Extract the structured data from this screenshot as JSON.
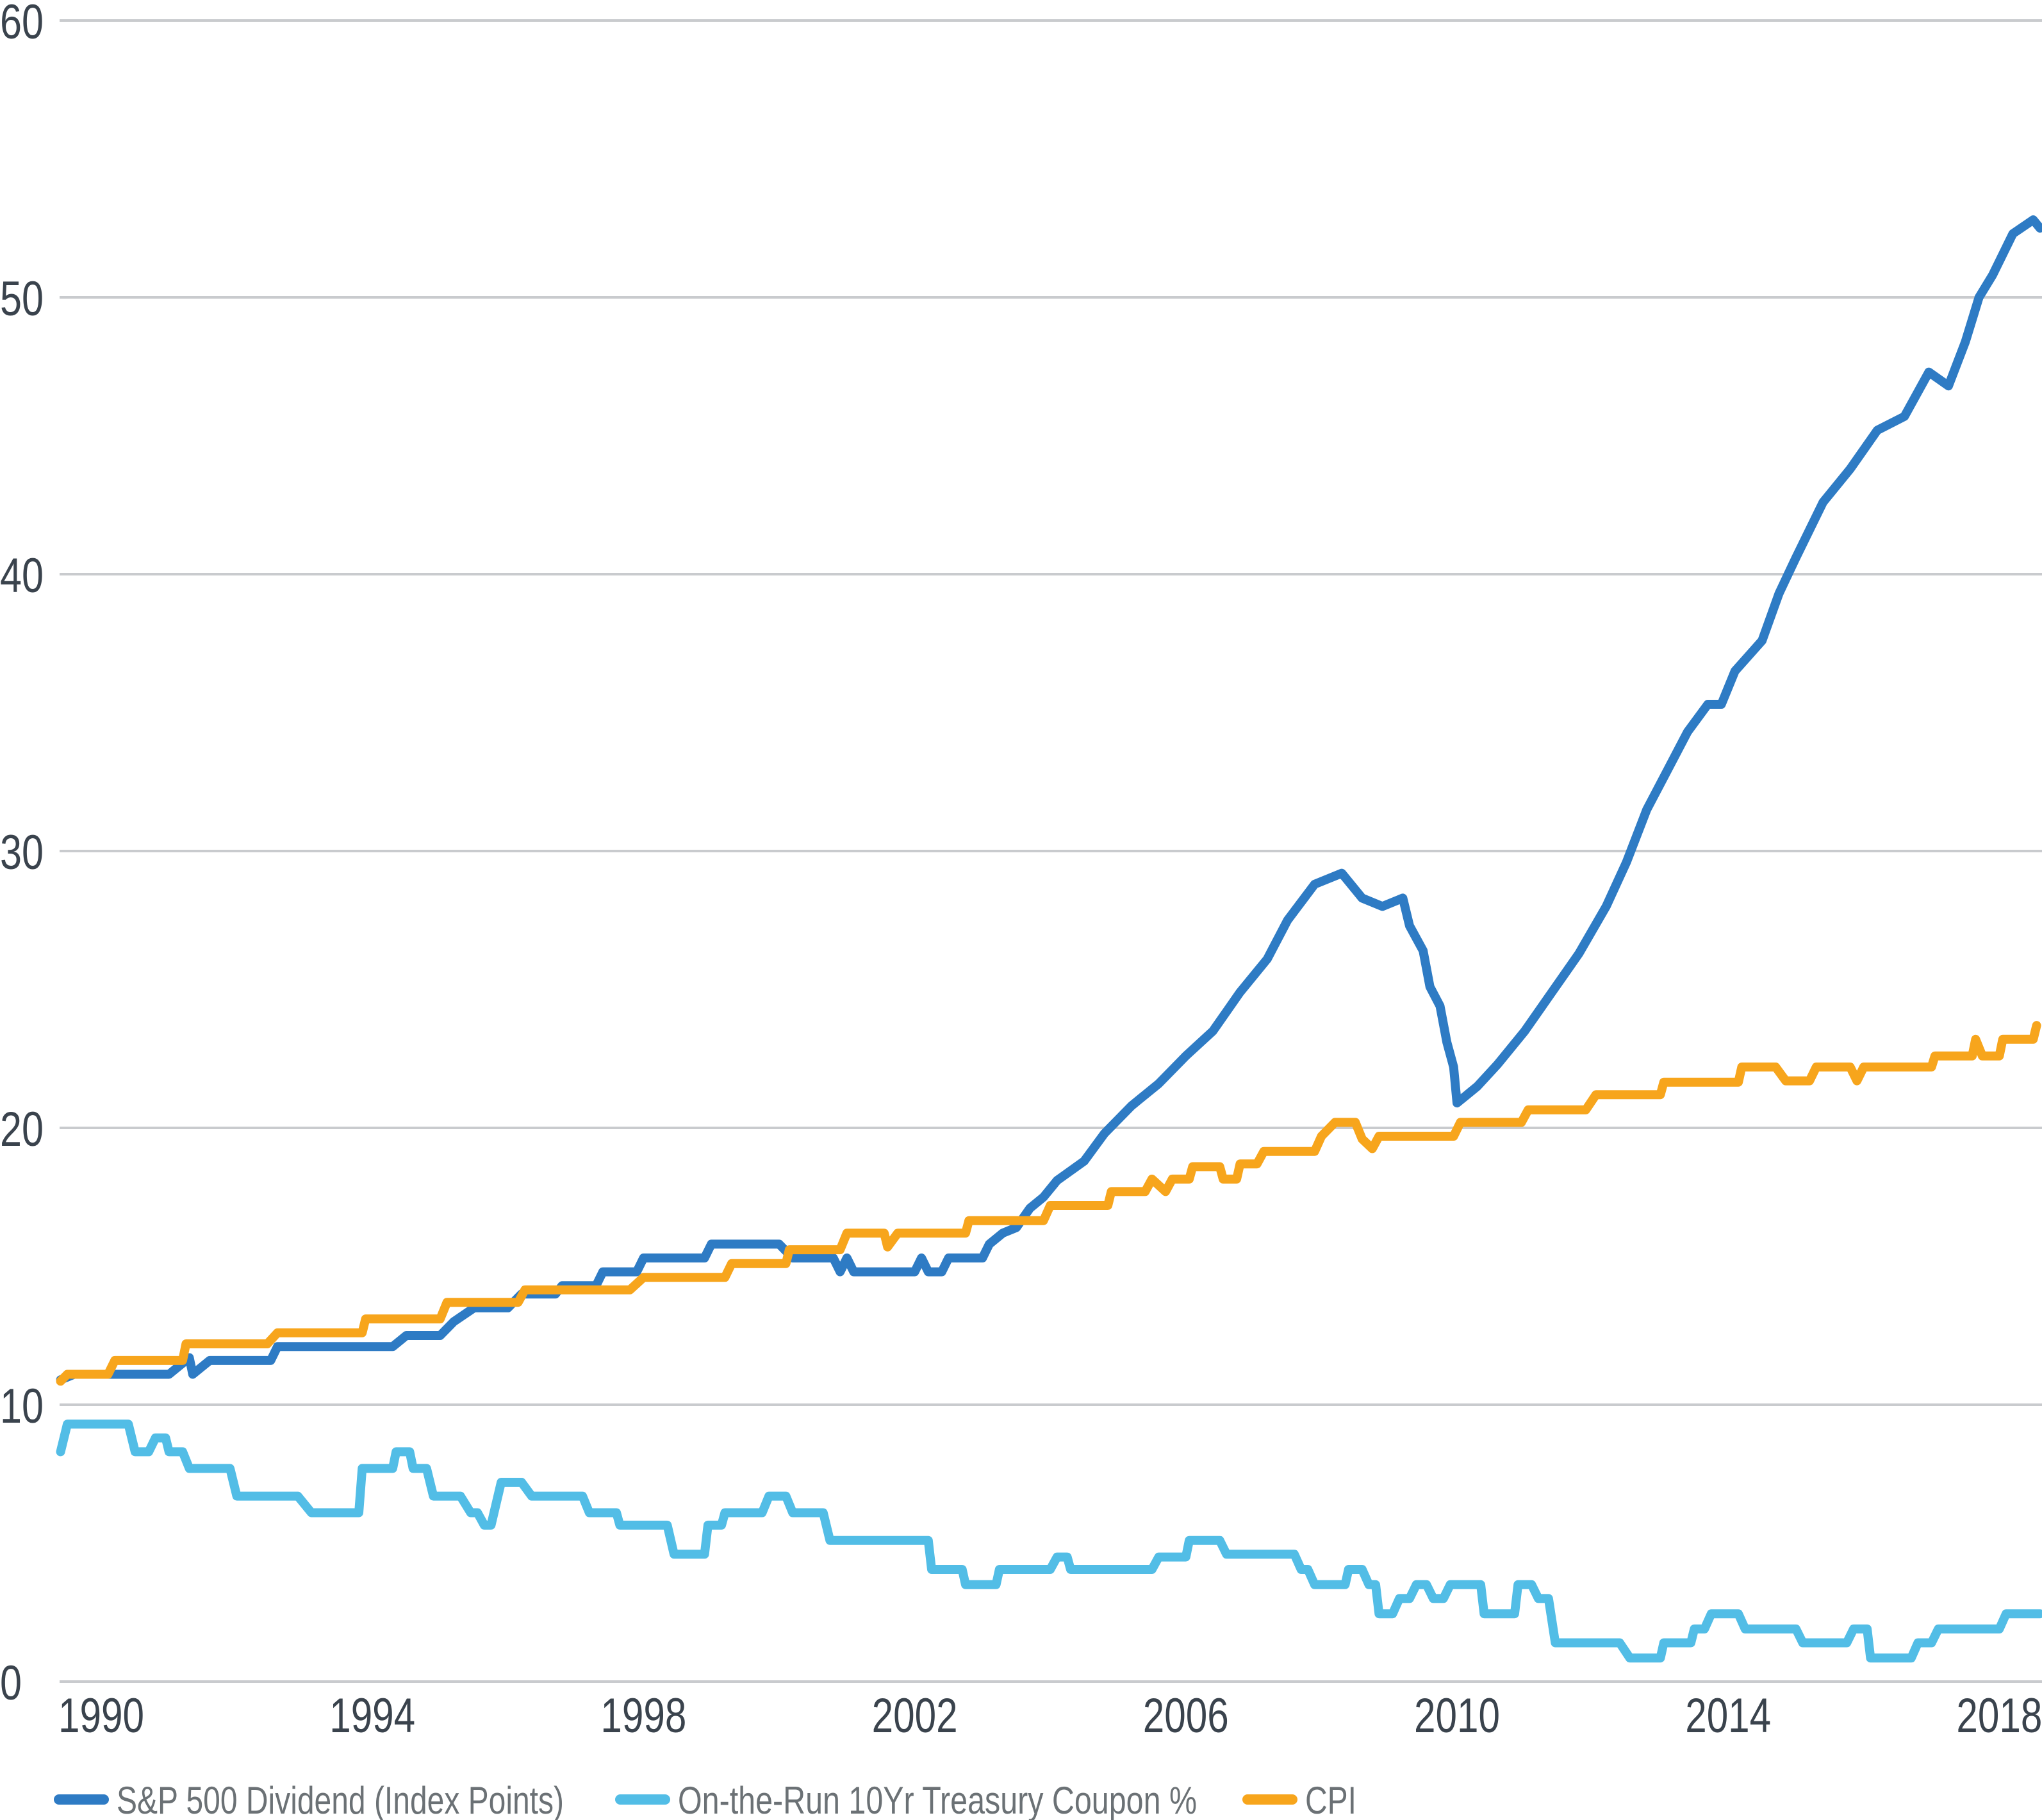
{
  "chart_data": {
    "type": "line",
    "title": "",
    "xlabel": "",
    "ylabel": "",
    "xlim": [
      1989.4,
      2018.6
    ],
    "ylim": [
      0,
      60
    ],
    "grid": true,
    "legend_position": "bottom",
    "x_ticks": [
      "1990",
      "1994",
      "1998",
      "2002",
      "2006",
      "2010",
      "2014",
      "2018"
    ],
    "y_ticks": [
      "0",
      "10",
      "20",
      "30",
      "40",
      "50",
      "60"
    ],
    "series": [
      {
        "name": "S&P 500 Dividend (Index Points)",
        "color": "#2e7bc4",
        "points": [
          [
            1989.4,
            10.9
          ],
          [
            1989.6,
            11.1
          ],
          [
            1991.0,
            11.1
          ],
          [
            1991.3,
            11.7
          ],
          [
            1991.35,
            11.1
          ],
          [
            1991.6,
            11.6
          ],
          [
            1992.5,
            11.6
          ],
          [
            1992.6,
            12.1
          ],
          [
            1994.3,
            12.1
          ],
          [
            1994.5,
            12.5
          ],
          [
            1995.0,
            12.5
          ],
          [
            1995.2,
            13.0
          ],
          [
            1995.5,
            13.5
          ],
          [
            1996.0,
            13.5
          ],
          [
            1996.2,
            14.0
          ],
          [
            1996.7,
            14.0
          ],
          [
            1996.8,
            14.3
          ],
          [
            1997.3,
            14.3
          ],
          [
            1997.4,
            14.8
          ],
          [
            1997.9,
            14.8
          ],
          [
            1998.0,
            15.3
          ],
          [
            1998.9,
            15.3
          ],
          [
            1999.0,
            15.8
          ],
          [
            2000.0,
            15.8
          ],
          [
            2000.2,
            15.3
          ],
          [
            2000.8,
            15.3
          ],
          [
            2000.9,
            14.8
          ],
          [
            2001.0,
            15.3
          ],
          [
            2001.1,
            14.8
          ],
          [
            2002.0,
            14.8
          ],
          [
            2002.1,
            15.3
          ],
          [
            2002.2,
            14.8
          ],
          [
            2002.4,
            14.8
          ],
          [
            2002.5,
            15.3
          ],
          [
            2003.0,
            15.3
          ],
          [
            2003.1,
            15.8
          ],
          [
            2003.3,
            16.2
          ],
          [
            2003.5,
            16.4
          ],
          [
            2003.7,
            17.1
          ],
          [
            2003.9,
            17.5
          ],
          [
            2004.1,
            18.1
          ],
          [
            2004.5,
            18.8
          ],
          [
            2004.8,
            19.8
          ],
          [
            2005.2,
            20.8
          ],
          [
            2005.6,
            21.6
          ],
          [
            2006.0,
            22.6
          ],
          [
            2006.4,
            23.5
          ],
          [
            2006.8,
            24.9
          ],
          [
            2007.2,
            26.1
          ],
          [
            2007.5,
            27.5
          ],
          [
            2007.9,
            28.8
          ],
          [
            2008.3,
            29.2
          ],
          [
            2008.6,
            28.3
          ],
          [
            2008.9,
            28.0
          ],
          [
            2009.2,
            28.3
          ],
          [
            2009.3,
            27.3
          ],
          [
            2009.5,
            26.4
          ],
          [
            2009.6,
            25.1
          ],
          [
            2009.75,
            24.4
          ],
          [
            2009.85,
            23.1
          ],
          [
            2009.95,
            22.2
          ],
          [
            2010.0,
            20.9
          ],
          [
            2010.3,
            21.5
          ],
          [
            2010.6,
            22.3
          ],
          [
            2011.0,
            23.5
          ],
          [
            2011.4,
            24.9
          ],
          [
            2011.8,
            26.3
          ],
          [
            2012.2,
            28.0
          ],
          [
            2012.5,
            29.6
          ],
          [
            2012.8,
            31.5
          ],
          [
            2013.1,
            32.9
          ],
          [
            2013.4,
            34.3
          ],
          [
            2013.7,
            35.3
          ],
          [
            2013.9,
            35.3
          ],
          [
            2014.1,
            36.5
          ],
          [
            2014.5,
            37.6
          ],
          [
            2014.75,
            39.3
          ],
          [
            2015.0,
            40.6
          ],
          [
            2015.4,
            42.6
          ],
          [
            2015.8,
            43.8
          ],
          [
            2016.2,
            45.2
          ],
          [
            2016.6,
            45.7
          ],
          [
            2016.96,
            47.3
          ],
          [
            2017.25,
            46.8
          ],
          [
            2017.5,
            48.4
          ],
          [
            2017.7,
            50.0
          ],
          [
            2017.9,
            50.8
          ],
          [
            2018.2,
            52.3
          ],
          [
            2018.5,
            52.8
          ],
          [
            2018.6,
            52.5
          ]
        ]
      },
      {
        "name": "On-the-Run 10Yr Treasury Coupon %",
        "color": "#52bde6",
        "points": [
          [
            1989.4,
            8.3
          ],
          [
            1989.5,
            9.3
          ],
          [
            1990.4,
            9.3
          ],
          [
            1990.5,
            8.3
          ],
          [
            1990.7,
            8.3
          ],
          [
            1990.8,
            8.8
          ],
          [
            1990.95,
            8.8
          ],
          [
            1991.0,
            8.3
          ],
          [
            1991.2,
            8.3
          ],
          [
            1991.3,
            7.7
          ],
          [
            1991.9,
            7.7
          ],
          [
            1992.0,
            6.7
          ],
          [
            1992.9,
            6.7
          ],
          [
            1993.1,
            6.1
          ],
          [
            1993.8,
            6.1
          ],
          [
            1993.85,
            7.7
          ],
          [
            1994.3,
            7.7
          ],
          [
            1994.35,
            8.3
          ],
          [
            1994.55,
            8.3
          ],
          [
            1994.6,
            7.7
          ],
          [
            1994.8,
            7.7
          ],
          [
            1994.9,
            6.7
          ],
          [
            1995.3,
            6.7
          ],
          [
            1995.45,
            6.1
          ],
          [
            1995.55,
            6.1
          ],
          [
            1995.65,
            5.65
          ],
          [
            1995.75,
            5.65
          ],
          [
            1995.9,
            7.2
          ],
          [
            1996.2,
            7.2
          ],
          [
            1996.35,
            6.7
          ],
          [
            1997.1,
            6.7
          ],
          [
            1997.2,
            6.1
          ],
          [
            1997.6,
            6.1
          ],
          [
            1997.65,
            5.65
          ],
          [
            1998.35,
            5.65
          ],
          [
            1998.45,
            4.6
          ],
          [
            1998.9,
            4.6
          ],
          [
            1998.95,
            5.65
          ],
          [
            1999.15,
            5.65
          ],
          [
            1999.2,
            6.1
          ],
          [
            1999.75,
            6.1
          ],
          [
            1999.85,
            6.7
          ],
          [
            2000.1,
            6.7
          ],
          [
            2000.2,
            6.1
          ],
          [
            2000.65,
            6.1
          ],
          [
            2000.75,
            5.1
          ],
          [
            2002.2,
            5.1
          ],
          [
            2002.25,
            4.05
          ],
          [
            2002.7,
            4.05
          ],
          [
            2002.75,
            3.5
          ],
          [
            2003.2,
            3.5
          ],
          [
            2003.25,
            4.05
          ],
          [
            2004.0,
            4.05
          ],
          [
            2004.1,
            4.5
          ],
          [
            2004.25,
            4.5
          ],
          [
            2004.3,
            4.05
          ],
          [
            2005.5,
            4.05
          ],
          [
            2005.6,
            4.5
          ],
          [
            2006.0,
            4.5
          ],
          [
            2006.05,
            5.1
          ],
          [
            2006.5,
            5.1
          ],
          [
            2006.6,
            4.6
          ],
          [
            2007.6,
            4.6
          ],
          [
            2007.7,
            4.05
          ],
          [
            2007.8,
            4.05
          ],
          [
            2007.9,
            3.5
          ],
          [
            2008.35,
            3.5
          ],
          [
            2008.4,
            4.05
          ],
          [
            2008.6,
            4.05
          ],
          [
            2008.7,
            3.5
          ],
          [
            2008.8,
            3.5
          ],
          [
            2008.85,
            2.45
          ],
          [
            2009.05,
            2.45
          ],
          [
            2009.15,
            3.0
          ],
          [
            2009.3,
            3.0
          ],
          [
            2009.4,
            3.5
          ],
          [
            2009.55,
            3.5
          ],
          [
            2009.65,
            3.0
          ],
          [
            2009.8,
            3.0
          ],
          [
            2009.9,
            3.5
          ],
          [
            2010.35,
            3.5
          ],
          [
            2010.4,
            2.45
          ],
          [
            2010.85,
            2.45
          ],
          [
            2010.9,
            3.5
          ],
          [
            2011.1,
            3.5
          ],
          [
            2011.2,
            3.0
          ],
          [
            2011.35,
            3.0
          ],
          [
            2011.45,
            1.4
          ],
          [
            2012.4,
            1.4
          ],
          [
            2012.55,
            0.85
          ],
          [
            2013.0,
            0.85
          ],
          [
            2013.05,
            1.4
          ],
          [
            2013.45,
            1.4
          ],
          [
            2013.5,
            1.9
          ],
          [
            2013.65,
            1.9
          ],
          [
            2013.75,
            2.45
          ],
          [
            2014.15,
            2.45
          ],
          [
            2014.25,
            1.9
          ],
          [
            2015.0,
            1.9
          ],
          [
            2015.1,
            1.4
          ],
          [
            2015.75,
            1.4
          ],
          [
            2015.85,
            1.9
          ],
          [
            2016.05,
            1.9
          ],
          [
            2016.1,
            0.85
          ],
          [
            2016.7,
            0.85
          ],
          [
            2016.8,
            1.4
          ],
          [
            2017.0,
            1.4
          ],
          [
            2017.1,
            1.9
          ],
          [
            2018.0,
            1.9
          ],
          [
            2018.1,
            2.45
          ],
          [
            2018.6,
            2.45
          ]
        ]
      },
      {
        "name": "CPI",
        "color": "#f7a51c",
        "points": [
          [
            1989.4,
            10.85
          ],
          [
            1989.5,
            11.1
          ],
          [
            1990.1,
            11.1
          ],
          [
            1990.2,
            11.6
          ],
          [
            1991.2,
            11.6
          ],
          [
            1991.25,
            12.2
          ],
          [
            1992.45,
            12.2
          ],
          [
            1992.6,
            12.6
          ],
          [
            1993.85,
            12.6
          ],
          [
            1993.9,
            13.1
          ],
          [
            1995.0,
            13.1
          ],
          [
            1995.1,
            13.7
          ],
          [
            1996.15,
            13.7
          ],
          [
            1996.25,
            14.15
          ],
          [
            1997.8,
            14.15
          ],
          [
            1998.0,
            14.6
          ],
          [
            1999.2,
            14.6
          ],
          [
            1999.3,
            15.1
          ],
          [
            2000.1,
            15.1
          ],
          [
            2000.15,
            15.6
          ],
          [
            2000.9,
            15.6
          ],
          [
            2001.0,
            16.2
          ],
          [
            2001.55,
            16.2
          ],
          [
            2001.6,
            15.7
          ],
          [
            2001.75,
            16.2
          ],
          [
            2002.75,
            16.2
          ],
          [
            2002.8,
            16.65
          ],
          [
            2003.9,
            16.65
          ],
          [
            2004.0,
            17.2
          ],
          [
            2004.85,
            17.2
          ],
          [
            2004.9,
            17.7
          ],
          [
            2005.4,
            17.7
          ],
          [
            2005.5,
            18.15
          ],
          [
            2005.7,
            17.7
          ],
          [
            2005.8,
            18.15
          ],
          [
            2006.05,
            18.15
          ],
          [
            2006.1,
            18.6
          ],
          [
            2006.5,
            18.6
          ],
          [
            2006.55,
            18.15
          ],
          [
            2006.75,
            18.15
          ],
          [
            2006.8,
            18.7
          ],
          [
            2007.05,
            18.7
          ],
          [
            2007.15,
            19.15
          ],
          [
            2007.9,
            19.15
          ],
          [
            2008.0,
            19.7
          ],
          [
            2008.2,
            20.2
          ],
          [
            2008.5,
            20.2
          ],
          [
            2008.6,
            19.6
          ],
          [
            2008.75,
            19.25
          ],
          [
            2008.85,
            19.7
          ],
          [
            2009.95,
            19.7
          ],
          [
            2010.05,
            20.2
          ],
          [
            2010.95,
            20.2
          ],
          [
            2011.05,
            20.65
          ],
          [
            2011.9,
            20.65
          ],
          [
            2012.05,
            21.2
          ],
          [
            2013.0,
            21.2
          ],
          [
            2013.05,
            21.65
          ],
          [
            2014.15,
            21.65
          ],
          [
            2014.2,
            22.2
          ],
          [
            2014.7,
            22.2
          ],
          [
            2014.85,
            21.7
          ],
          [
            2015.2,
            21.7
          ],
          [
            2015.3,
            22.2
          ],
          [
            2015.8,
            22.2
          ],
          [
            2015.9,
            21.7
          ],
          [
            2016.0,
            22.2
          ],
          [
            2017.0,
            22.2
          ],
          [
            2017.05,
            22.6
          ],
          [
            2017.6,
            22.6
          ],
          [
            2017.65,
            23.2
          ],
          [
            2017.75,
            22.6
          ],
          [
            2018.0,
            22.6
          ],
          [
            2018.05,
            23.2
          ],
          [
            2018.5,
            23.2
          ],
          [
            2018.55,
            23.7
          ]
        ]
      }
    ]
  }
}
